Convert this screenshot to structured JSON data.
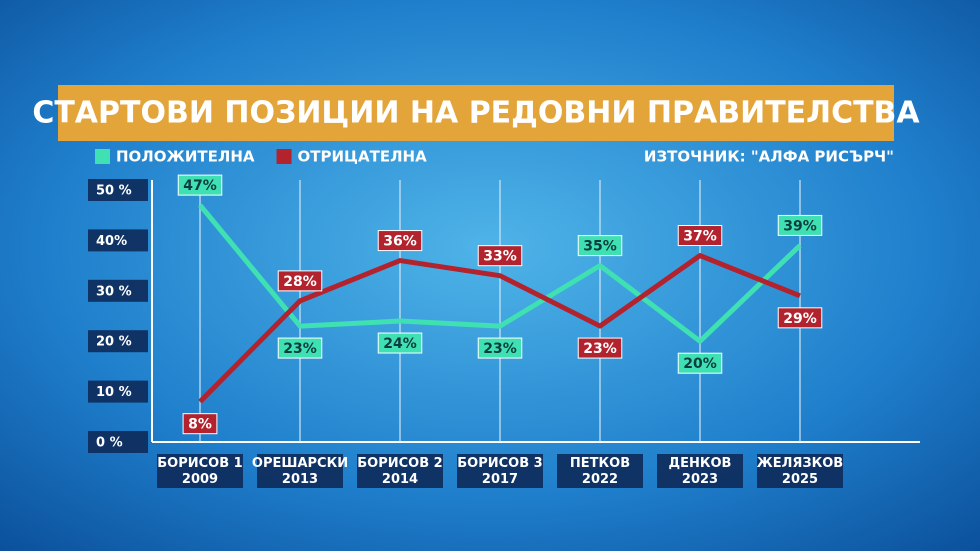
{
  "chart_data": {
    "type": "line",
    "title": "СТАРТОВИ ПОЗИЦИИ НА РЕДОВНИ ПРАВИТЕЛСТВА",
    "source": "ИЗТОЧНИК: \"АЛФА РИСЪРЧ\"",
    "categories": [
      "БОРИСОВ 1\n2009",
      "ОРЕШАРСКИ\n2013",
      "БОРИСОВ 2\n2014",
      "БОРИСОВ 3\n2017",
      "ПЕТКОВ\n2022",
      "ДЕНКОВ\n2023",
      "ЖЕЛЯЗКОВ\n2025"
    ],
    "series": [
      {
        "name": "ПОЛОЖИТЕЛНА",
        "color": "#3fe0b2",
        "values": [
          47,
          23,
          24,
          23,
          35,
          20,
          39
        ],
        "value_labels": [
          "47%",
          "23%",
          "24%",
          "23%",
          "35%",
          "20%",
          "39%"
        ]
      },
      {
        "name": "ОТРИЦАТЕЛНА",
        "color": "#b3232e",
        "values": [
          8,
          28,
          36,
          33,
          23,
          37,
          29
        ],
        "value_labels": [
          "8%",
          "28%",
          "36%",
          "33%",
          "23%",
          "37%",
          "29%"
        ]
      }
    ],
    "ylim": [
      0,
      50
    ],
    "yticks": [
      {
        "value": 0,
        "label": "0 %"
      },
      {
        "value": 10,
        "label": "10 %"
      },
      {
        "value": 20,
        "label": "20 %"
      },
      {
        "value": 30,
        "label": "30 %"
      },
      {
        "value": 40,
        "label": "40%"
      },
      {
        "value": 50,
        "label": "50 %"
      }
    ],
    "grid": true
  }
}
